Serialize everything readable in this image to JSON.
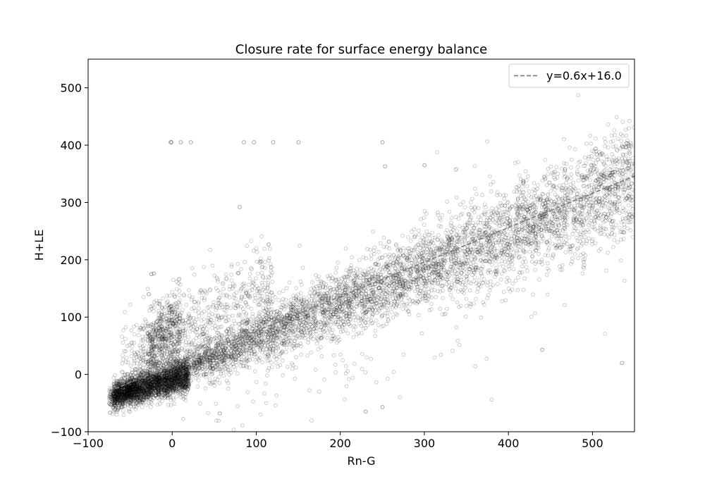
{
  "chart_data": {
    "type": "scatter",
    "title": "Closure rate for surface energy balance",
    "xlabel": "Rn-G",
    "ylabel": "H+LE",
    "xlim": [
      -100,
      550
    ],
    "ylim": [
      -100,
      550
    ],
    "xticks": [
      -100,
      0,
      100,
      200,
      300,
      400,
      500
    ],
    "yticks": [
      -100,
      0,
      100,
      200,
      300,
      400,
      500
    ],
    "x_tick_labels": [
      "−100",
      "0",
      "100",
      "200",
      "300",
      "400",
      "500"
    ],
    "y_tick_labels": [
      "−100",
      "0",
      "100",
      "200",
      "300",
      "400",
      "500"
    ],
    "grid": false,
    "legend": {
      "placement": "top-right",
      "entries": [
        "y=0.6x+16.0"
      ]
    },
    "colors": {
      "points": "#000000",
      "fit_line": "#808080"
    },
    "fit_line": {
      "label": "y=0.6x+16.0",
      "slope": 0.6,
      "intercept": 16.0,
      "x_range": [
        -75,
        550
      ],
      "style": "dashed"
    },
    "series": [
      {
        "kind": "scatter-cloud",
        "marker": "hollow-circle",
        "approx_points": 9000,
        "clusters": [
          {
            "x": [
              -75,
              550
            ],
            "y_mean": [
              -45,
              340
            ],
            "y_std": [
              10,
              48
            ],
            "count": 5200
          },
          {
            "x": [
              -70,
              20
            ],
            "y_mean": [
              -35,
              -5
            ],
            "y_std": [
              12,
              14
            ],
            "count": 1800
          },
          {
            "x": [
              -30,
              10
            ],
            "y_mean": [
              40,
              80
            ],
            "y_std": [
              30,
              40
            ],
            "count": 450
          },
          {
            "x": [
              -60,
              120
            ],
            "y_mean": [
              20,
              150
            ],
            "y_std": [
              40,
              40
            ],
            "count": 700
          },
          {
            "x": [
              0,
              550
            ],
            "y_mean": [
              -20,
              300
            ],
            "y_std": [
              60,
              80
            ],
            "count": 450
          }
        ],
        "outliers": [
          {
            "x": -2,
            "y": 405
          },
          {
            "x": -1,
            "y": 405
          },
          {
            "x": 10,
            "y": 405
          },
          {
            "x": 22,
            "y": 405
          },
          {
            "x": 85,
            "y": 405
          },
          {
            "x": 97,
            "y": 405
          },
          {
            "x": 120,
            "y": 405
          },
          {
            "x": 150,
            "y": 405
          },
          {
            "x": 250,
            "y": 405
          },
          {
            "x": 80,
            "y": 292
          },
          {
            "x": 253,
            "y": 363
          },
          {
            "x": 300,
            "y": 365
          },
          {
            "x": 230,
            "y": -65
          },
          {
            "x": 250,
            "y": -57
          },
          {
            "x": 535,
            "y": 20
          },
          {
            "x": 440,
            "y": 43
          },
          {
            "x": -25,
            "y": 175
          },
          {
            "x": -22,
            "y": 176
          },
          {
            "x": -28,
            "y": 140
          }
        ]
      }
    ]
  }
}
